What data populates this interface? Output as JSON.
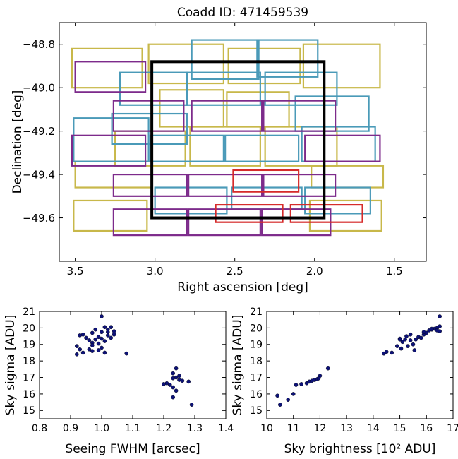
{
  "chart_data": [
    {
      "type": "footprint-map",
      "title": "Coadd ID: 471459539",
      "xlabel": "Right ascension [deg]",
      "ylabel": "Declination [deg]",
      "xlim": [
        3.6,
        1.3
      ],
      "ylim": [
        -49.8,
        -48.7
      ],
      "x_ticks": [
        3.5,
        3.0,
        2.5,
        2.0,
        1.5
      ],
      "x_tick_labels": [
        "3.5",
        "3.0",
        "2.5",
        "2.0",
        "1.5"
      ],
      "y_ticks": [
        -48.8,
        -49.0,
        -49.2,
        -49.4,
        -49.6
      ],
      "y_tick_labels": [
        "−48.8",
        "−49.0",
        "−49.2",
        "−49.4",
        "−49.6"
      ],
      "colors": {
        "g": "#c8b84a",
        "r": "#4a9ab8",
        "i": "#7d2b8b",
        "z": "#d62b2b",
        "coadd": "#000000"
      },
      "coadd_box": {
        "ra_min": 1.94,
        "ra_max": 3.02,
        "dec_min": -49.6,
        "dec_max": -48.88
      },
      "exposures": [
        {
          "band": "g",
          "ra_min": 3.08,
          "ra_max": 3.52,
          "dec_min": -49.0,
          "dec_max": -48.82
        },
        {
          "band": "g",
          "ra_min": 2.57,
          "ra_max": 3.04,
          "dec_min": -48.98,
          "dec_max": -48.8
        },
        {
          "band": "g",
          "ra_min": 2.09,
          "ra_max": 2.54,
          "dec_min": -48.98,
          "dec_max": -48.82
        },
        {
          "band": "g",
          "ra_min": 1.59,
          "ra_max": 2.07,
          "dec_min": -49.0,
          "dec_max": -48.8
        },
        {
          "band": "g",
          "ra_min": 2.57,
          "ra_max": 2.97,
          "dec_min": -49.18,
          "dec_max": -49.01
        },
        {
          "band": "g",
          "ra_min": 2.16,
          "ra_max": 2.55,
          "dec_min": -49.18,
          "dec_max": -49.02
        },
        {
          "band": "g",
          "ra_min": 2.34,
          "ra_max": 2.78,
          "dec_min": -49.36,
          "dec_max": -49.18
        },
        {
          "band": "g",
          "ra_min": 1.86,
          "ra_max": 2.31,
          "dec_min": -49.36,
          "dec_max": -49.18
        },
        {
          "band": "g",
          "ra_min": 2.81,
          "ra_max": 3.25,
          "dec_min": -49.36,
          "dec_max": -49.2
        },
        {
          "band": "g",
          "ra_min": 3.02,
          "ra_max": 3.5,
          "dec_min": -49.46,
          "dec_max": -49.34
        },
        {
          "band": "g",
          "ra_min": 1.57,
          "ra_max": 2.02,
          "dec_min": -49.46,
          "dec_max": -49.36
        },
        {
          "band": "g",
          "ra_min": 3.05,
          "ra_max": 3.51,
          "dec_min": -49.66,
          "dec_max": -49.52
        },
        {
          "band": "g",
          "ra_min": 1.58,
          "ra_max": 2.03,
          "dec_min": -49.66,
          "dec_max": -49.52
        },
        {
          "band": "r",
          "ra_min": 2.35,
          "ra_max": 2.77,
          "dec_min": -48.96,
          "dec_max": -48.78
        },
        {
          "band": "r",
          "ra_min": 1.98,
          "ra_max": 2.36,
          "dec_min": -48.95,
          "dec_max": -48.78
        },
        {
          "band": "r",
          "ra_min": 2.8,
          "ra_max": 3.22,
          "dec_min": -49.08,
          "dec_max": -48.93
        },
        {
          "band": "r",
          "ra_min": 2.34,
          "ra_max": 2.8,
          "dec_min": -49.08,
          "dec_max": -48.93
        },
        {
          "band": "r",
          "ra_min": 1.86,
          "ra_max": 2.31,
          "dec_min": -49.08,
          "dec_max": -48.93
        },
        {
          "band": "r",
          "ra_min": 1.66,
          "ra_max": 2.12,
          "dec_min": -49.2,
          "dec_max": -49.04
        },
        {
          "band": "r",
          "ra_min": 2.8,
          "ra_max": 3.27,
          "dec_min": -49.26,
          "dec_max": -49.12
        },
        {
          "band": "r",
          "ra_min": 3.04,
          "ra_max": 3.51,
          "dec_min": -49.34,
          "dec_max": -49.14
        },
        {
          "band": "r",
          "ra_min": 2.57,
          "ra_max": 3.03,
          "dec_min": -49.34,
          "dec_max": -49.22
        },
        {
          "band": "r",
          "ra_min": 2.1,
          "ra_max": 2.56,
          "dec_min": -49.34,
          "dec_max": -49.22
        },
        {
          "band": "r",
          "ra_min": 1.62,
          "ra_max": 2.08,
          "dec_min": -49.34,
          "dec_max": -49.18
        },
        {
          "band": "r",
          "ra_min": 2.55,
          "ra_max": 3.0,
          "dec_min": -49.58,
          "dec_max": -49.46
        },
        {
          "band": "r",
          "ra_min": 2.08,
          "ra_max": 2.52,
          "dec_min": -49.56,
          "dec_max": -49.46
        },
        {
          "band": "r",
          "ra_min": 1.65,
          "ra_max": 2.06,
          "dec_min": -49.58,
          "dec_max": -49.46
        },
        {
          "band": "i",
          "ra_min": 3.06,
          "ra_max": 3.5,
          "dec_min": -49.02,
          "dec_max": -48.88
        },
        {
          "band": "i",
          "ra_min": 2.82,
          "ra_max": 3.26,
          "dec_min": -49.2,
          "dec_max": -49.06
        },
        {
          "band": "i",
          "ra_min": 2.33,
          "ra_max": 2.77,
          "dec_min": -49.2,
          "dec_max": -49.06
        },
        {
          "band": "i",
          "ra_min": 1.87,
          "ra_max": 2.32,
          "dec_min": -49.2,
          "dec_max": -49.06
        },
        {
          "band": "i",
          "ra_min": 3.06,
          "ra_max": 3.52,
          "dec_min": -49.36,
          "dec_max": -49.22
        },
        {
          "band": "i",
          "ra_min": 1.59,
          "ra_max": 2.06,
          "dec_min": -49.34,
          "dec_max": -49.22
        },
        {
          "band": "i",
          "ra_min": 2.8,
          "ra_max": 3.26,
          "dec_min": -49.5,
          "dec_max": -49.4
        },
        {
          "band": "i",
          "ra_min": 2.33,
          "ra_max": 2.79,
          "dec_min": -49.5,
          "dec_max": -49.4
        },
        {
          "band": "i",
          "ra_min": 1.87,
          "ra_max": 2.32,
          "dec_min": -49.5,
          "dec_max": -49.4
        },
        {
          "band": "i",
          "ra_min": 2.8,
          "ra_max": 3.26,
          "dec_min": -49.68,
          "dec_max": -49.56
        },
        {
          "band": "i",
          "ra_min": 2.34,
          "ra_max": 2.79,
          "dec_min": -49.68,
          "dec_max": -49.56
        },
        {
          "band": "i",
          "ra_min": 1.9,
          "ra_max": 2.33,
          "dec_min": -49.68,
          "dec_max": -49.56
        },
        {
          "band": "z",
          "ra_min": 2.1,
          "ra_max": 2.51,
          "dec_min": -49.48,
          "dec_max": -49.38
        },
        {
          "band": "z",
          "ra_min": 2.2,
          "ra_max": 2.62,
          "dec_min": -49.62,
          "dec_max": -49.54
        },
        {
          "band": "z",
          "ra_min": 1.7,
          "ra_max": 2.15,
          "dec_min": -49.62,
          "dec_max": -49.54
        }
      ]
    },
    {
      "type": "scatter",
      "title": "",
      "xlabel": "Seeing FWHM [arcsec]",
      "ylabel": "Sky sigma [ADU]",
      "xlim": [
        0.8,
        1.4
      ],
      "ylim": [
        14.5,
        21
      ],
      "x_ticks": [
        0.8,
        0.9,
        1.0,
        1.1,
        1.2,
        1.3,
        1.4
      ],
      "x_tick_labels": [
        "0.8",
        "0.9",
        "1.0",
        "1.1",
        "1.2",
        "1.3",
        "1.4"
      ],
      "y_ticks": [
        15,
        16,
        17,
        18,
        19,
        20,
        21
      ],
      "y_tick_labels": [
        "15",
        "16",
        "17",
        "18",
        "19",
        "20",
        "21"
      ],
      "marker_color": "#0d1278",
      "points": [
        [
          1.0,
          20.7
        ],
        [
          1.01,
          20.05
        ],
        [
          1.02,
          19.9
        ],
        [
          1.03,
          20.05
        ],
        [
          1.04,
          19.8
        ],
        [
          1.0,
          19.75
        ],
        [
          0.98,
          19.9
        ],
        [
          0.97,
          19.7
        ],
        [
          0.94,
          19.6
        ],
        [
          0.93,
          19.55
        ],
        [
          0.95,
          19.4
        ],
        [
          0.96,
          19.25
        ],
        [
          0.97,
          19.1
        ],
        [
          0.98,
          19.3
        ],
        [
          0.99,
          19.45
        ],
        [
          1.0,
          19.35
        ],
        [
          1.01,
          19.2
        ],
        [
          1.02,
          19.55
        ],
        [
          1.03,
          19.4
        ],
        [
          1.04,
          19.6
        ],
        [
          1.02,
          19.75
        ],
        [
          0.99,
          19.05
        ],
        [
          0.97,
          18.95
        ],
        [
          0.96,
          18.7
        ],
        [
          0.99,
          18.65
        ],
        [
          1.0,
          18.8
        ],
        [
          1.01,
          18.5
        ],
        [
          0.92,
          18.9
        ],
        [
          0.93,
          18.7
        ],
        [
          0.92,
          18.4
        ],
        [
          0.94,
          18.5
        ],
        [
          0.97,
          18.6
        ],
        [
          1.08,
          18.45
        ],
        [
          1.24,
          17.55
        ],
        [
          1.23,
          17.25
        ],
        [
          1.25,
          17.1
        ],
        [
          1.24,
          17.0
        ],
        [
          1.25,
          16.85
        ],
        [
          1.23,
          16.95
        ],
        [
          1.26,
          16.8
        ],
        [
          1.28,
          16.75
        ],
        [
          1.21,
          16.65
        ],
        [
          1.22,
          16.55
        ],
        [
          1.2,
          16.6
        ],
        [
          1.23,
          16.4
        ],
        [
          1.24,
          16.2
        ],
        [
          1.23,
          15.8
        ],
        [
          1.29,
          15.35
        ]
      ]
    },
    {
      "type": "scatter",
      "title": "",
      "xlabel": "Sky brightness [10² ADU]",
      "ylabel": "Sky sigma [ADU]",
      "xlim": [
        10,
        17
      ],
      "ylim": [
        14.5,
        21
      ],
      "x_ticks": [
        10,
        11,
        12,
        13,
        14,
        15,
        16,
        17
      ],
      "x_tick_labels": [
        "10",
        "11",
        "12",
        "13",
        "14",
        "15",
        "16",
        "17"
      ],
      "y_ticks": [
        15,
        16,
        17,
        18,
        19,
        20,
        21
      ],
      "y_tick_labels": [
        "15",
        "16",
        "17",
        "18",
        "19",
        "20",
        "21"
      ],
      "marker_color": "#0d1278",
      "points": [
        [
          10.4,
          15.9
        ],
        [
          10.5,
          15.35
        ],
        [
          10.8,
          15.65
        ],
        [
          11.0,
          16.0
        ],
        [
          11.1,
          16.55
        ],
        [
          11.3,
          16.6
        ],
        [
          11.5,
          16.65
        ],
        [
          11.6,
          16.75
        ],
        [
          11.7,
          16.8
        ],
        [
          11.8,
          16.85
        ],
        [
          11.9,
          16.9
        ],
        [
          12.0,
          17.1
        ],
        [
          11.95,
          16.95
        ],
        [
          12.3,
          17.55
        ],
        [
          14.4,
          18.45
        ],
        [
          14.5,
          18.55
        ],
        [
          14.7,
          18.5
        ],
        [
          14.9,
          18.9
        ],
        [
          15.0,
          19.35
        ],
        [
          15.05,
          18.75
        ],
        [
          15.1,
          19.15
        ],
        [
          15.2,
          19.3
        ],
        [
          15.3,
          18.9
        ],
        [
          15.4,
          19.25
        ],
        [
          15.5,
          19.0
        ],
        [
          15.55,
          18.65
        ],
        [
          15.6,
          19.3
        ],
        [
          15.7,
          19.45
        ],
        [
          15.8,
          19.4
        ],
        [
          15.9,
          19.6
        ],
        [
          16.0,
          19.7
        ],
        [
          16.1,
          19.85
        ],
        [
          16.2,
          19.9
        ],
        [
          16.3,
          19.95
        ],
        [
          16.4,
          20.0
        ],
        [
          16.5,
          20.7
        ],
        [
          16.5,
          20.1
        ],
        [
          16.4,
          19.85
        ],
        [
          16.2,
          19.95
        ],
        [
          15.9,
          19.75
        ],
        [
          15.4,
          19.6
        ],
        [
          15.25,
          19.5
        ],
        [
          15.0,
          19.3
        ],
        [
          16.5,
          19.8
        ]
      ]
    }
  ]
}
